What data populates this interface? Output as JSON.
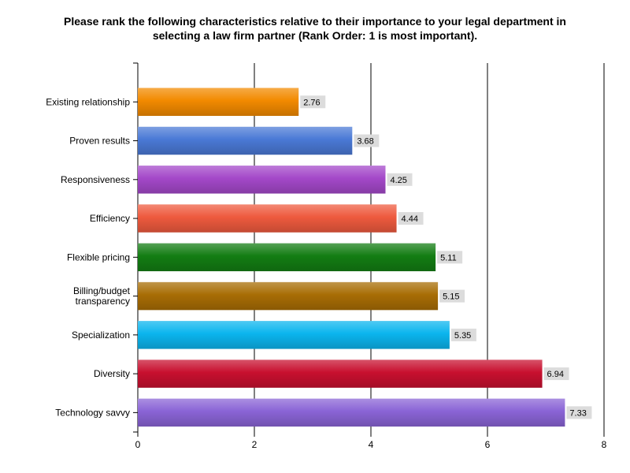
{
  "chart_data": {
    "type": "bar",
    "orientation": "horizontal",
    "title_lines": [
      "Please rank the following characteristics relative to their importance to your legal department in",
      "selecting a law firm partner (Rank Order: 1 is most important)."
    ],
    "categories": [
      [
        "Existing relationship"
      ],
      [
        "Proven results"
      ],
      [
        "Responsiveness"
      ],
      [
        "Efficiency"
      ],
      [
        "Flexible pricing"
      ],
      [
        "Billing/budget",
        "transparency"
      ],
      [
        "Specialization"
      ],
      [
        "Diversity"
      ],
      [
        "Technology savvy"
      ]
    ],
    "values": [
      2.76,
      3.68,
      4.25,
      4.44,
      5.11,
      5.15,
      5.35,
      6.94,
      7.33
    ],
    "value_labels": [
      "2.76",
      "3.68",
      "4.25",
      "4.44",
      "5.11",
      "5.15",
      "5.35",
      "6.94",
      "7.33"
    ],
    "colors": [
      "#f28a00",
      "#4a79d6",
      "#a448c9",
      "#ee5a3e",
      "#137d13",
      "#a86d05",
      "#0bb5ee",
      "#c8102f",
      "#8a64d6"
    ],
    "xlim": [
      0,
      8
    ],
    "xticks": [
      0,
      2,
      4,
      6,
      8
    ],
    "xtick_labels": [
      "0",
      "2",
      "4",
      "6",
      "8"
    ],
    "grid": true,
    "xlabel": "",
    "ylabel": ""
  }
}
